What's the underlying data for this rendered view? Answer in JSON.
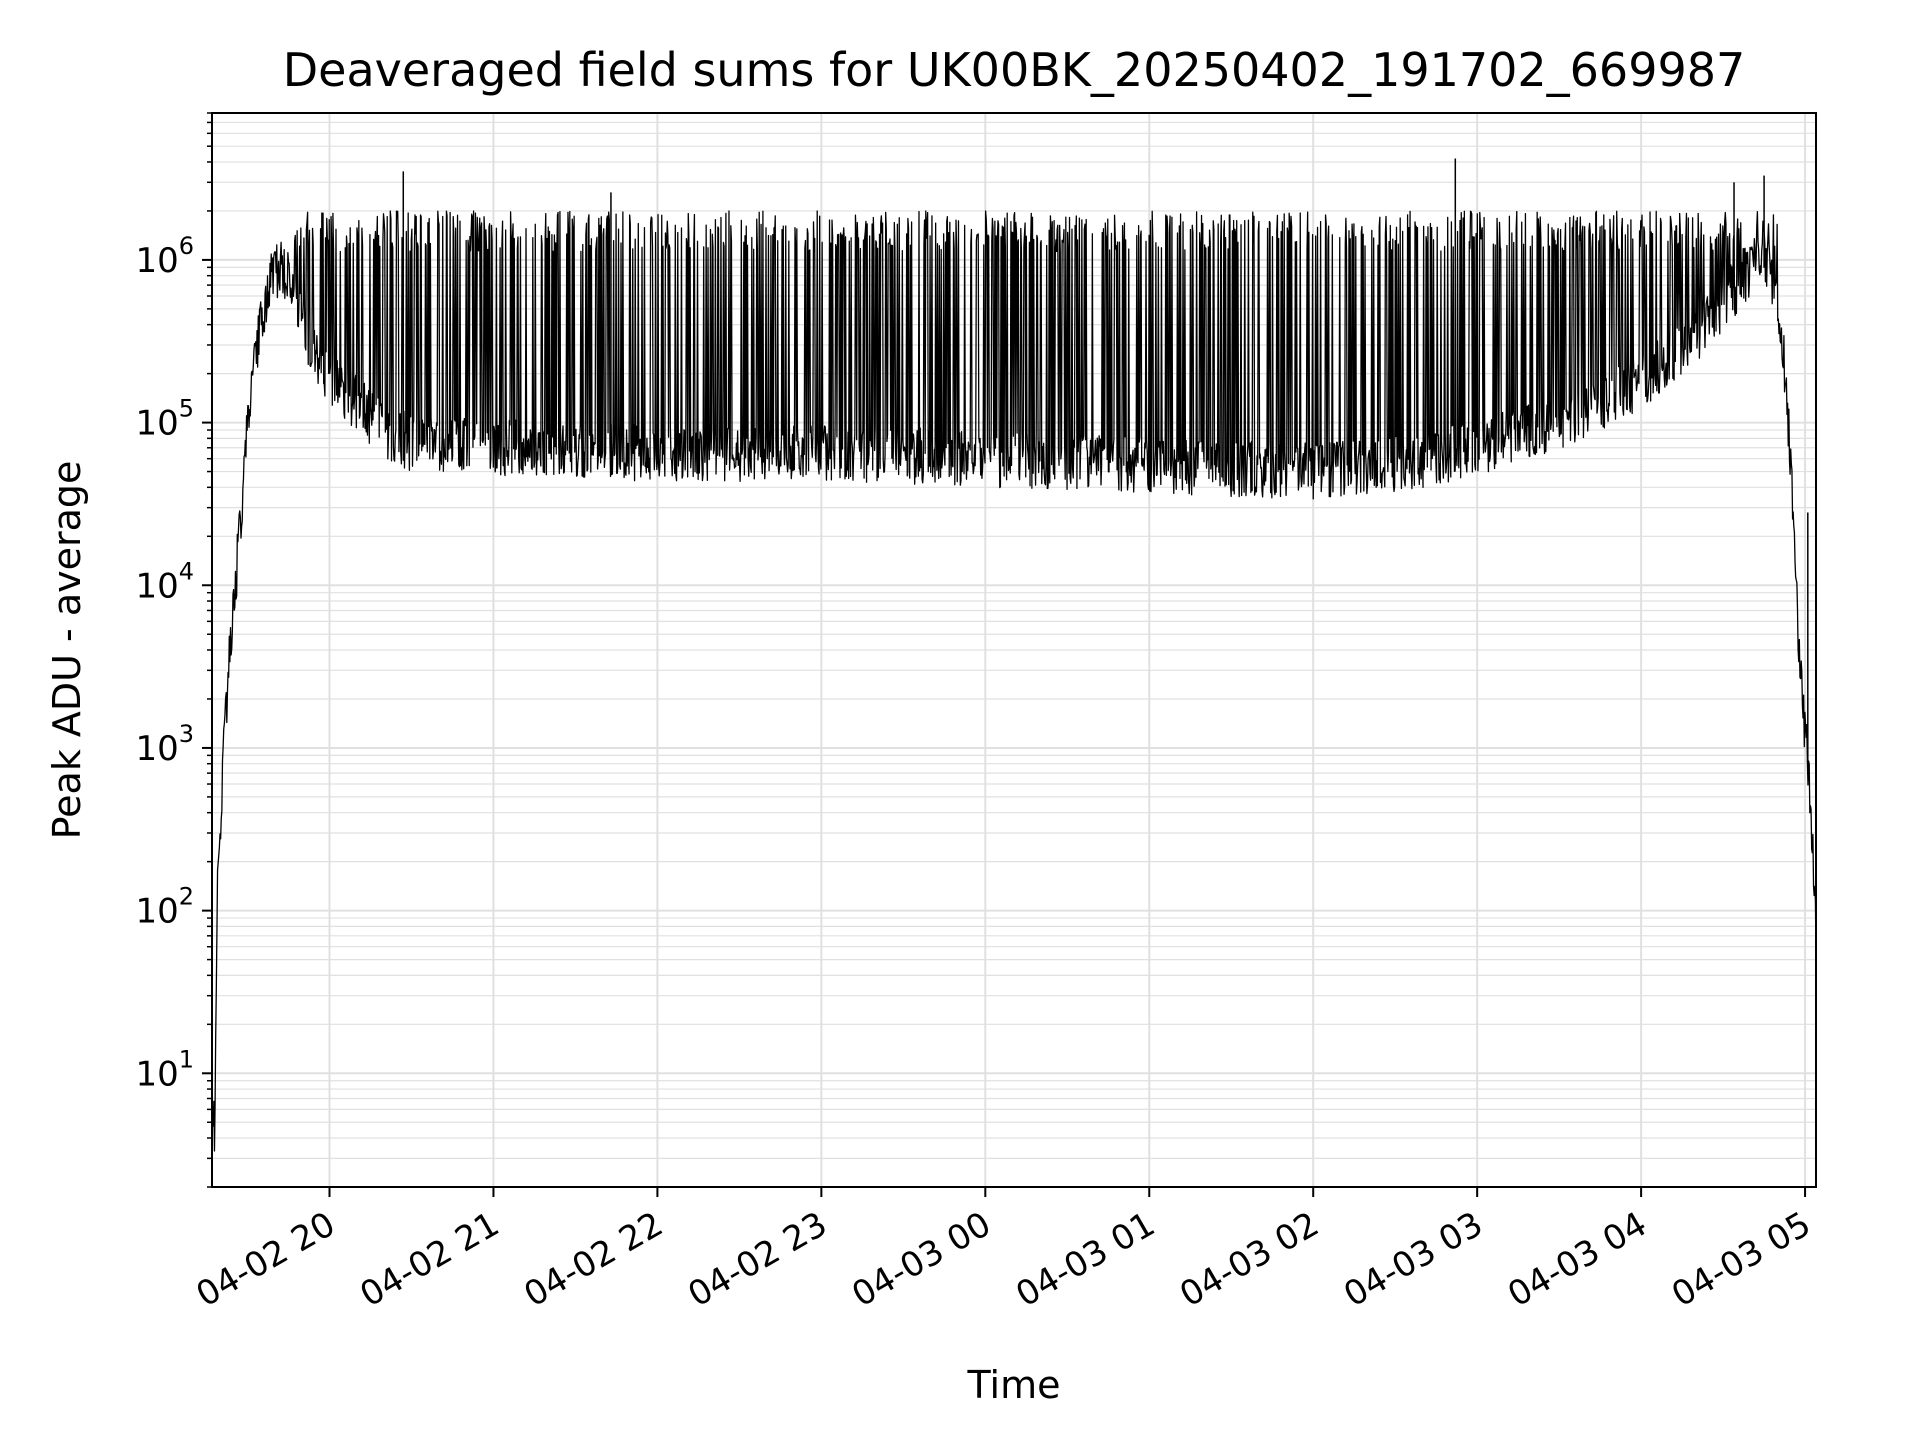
{
  "chart_data": {
    "type": "line",
    "title": "Deaveraged field sums for UK00BK_20250402_191702_669987",
    "xlabel": "Time",
    "ylabel": "Peak ADU - average",
    "yscale": "log",
    "grid": true,
    "legend": "none",
    "line_color": "#000000",
    "grid_color": "#e0e0e0",
    "xlim": [
      "2025-04-02 19:17",
      "2025-04-03 05:04"
    ],
    "ylim": [
      2,
      8000000
    ],
    "x_ticks": [
      {
        "at": "2025-04-02 20:00",
        "label": "04-02 20"
      },
      {
        "at": "2025-04-02 21:00",
        "label": "04-02 21"
      },
      {
        "at": "2025-04-02 22:00",
        "label": "04-02 22"
      },
      {
        "at": "2025-04-02 23:00",
        "label": "04-02 23"
      },
      {
        "at": "2025-04-03 00:00",
        "label": "04-03 00"
      },
      {
        "at": "2025-04-03 01:00",
        "label": "04-03 01"
      },
      {
        "at": "2025-04-03 02:00",
        "label": "04-03 02"
      },
      {
        "at": "2025-04-03 03:00",
        "label": "04-03 03"
      },
      {
        "at": "2025-04-03 04:00",
        "label": "04-03 04"
      },
      {
        "at": "2025-04-03 05:00",
        "label": "04-03 05"
      }
    ],
    "y_ticks": [
      {
        "value": 10,
        "base": "10",
        "exp": "1"
      },
      {
        "value": 100,
        "base": "10",
        "exp": "2"
      },
      {
        "value": 1000,
        "base": "10",
        "exp": "3"
      },
      {
        "value": 10000,
        "base": "10",
        "exp": "4"
      },
      {
        "value": 100000,
        "base": "10",
        "exp": "5"
      },
      {
        "value": 1000000,
        "base": "10",
        "exp": "6"
      }
    ],
    "series": [
      {
        "points": [
          [
            "2025-04-02 19:17",
            4
          ],
          [
            "2025-04-02 19:18",
            5
          ],
          [
            "2025-04-02 19:19",
            150
          ],
          [
            "2025-04-02 19:21",
            800
          ],
          [
            "2025-04-02 19:23",
            3000
          ],
          [
            "2025-04-02 19:25",
            8000
          ],
          [
            "2025-04-02 19:27",
            20000
          ],
          [
            "2025-04-02 19:29",
            60000
          ],
          [
            "2025-04-02 19:31",
            150000
          ],
          [
            "2025-04-02 19:34",
            350000
          ],
          [
            "2025-04-02 19:38",
            700000
          ],
          [
            "2025-04-02 19:42",
            900000
          ],
          [
            "2025-04-02 19:46",
            800000
          ],
          [
            "2025-04-02 19:50",
            400000
          ],
          [
            "2025-04-02 19:55",
            250000
          ],
          [
            "2025-04-02 20:00",
            180000
          ],
          [
            "2025-04-02 20:10",
            130000
          ],
          [
            "2025-04-02 20:20",
            90000
          ],
          [
            "2025-04-02 20:30",
            75000
          ],
          [
            "2025-04-02 21:00",
            70000
          ],
          [
            "2025-04-02 22:00",
            65000
          ],
          [
            "2025-04-02 23:00",
            65000
          ],
          [
            "2025-04-03 00:00",
            60000
          ],
          [
            "2025-04-03 01:00",
            55000
          ],
          [
            "2025-04-03 02:00",
            50000
          ],
          [
            "2025-04-03 02:30",
            55000
          ],
          [
            "2025-04-03 03:00",
            70000
          ],
          [
            "2025-04-03 03:30",
            100000
          ],
          [
            "2025-04-03 04:00",
            180000
          ],
          [
            "2025-04-03 04:20",
            350000
          ],
          [
            "2025-04-03 04:35",
            700000
          ],
          [
            "2025-04-03 04:42",
            1000000
          ],
          [
            "2025-04-03 04:48",
            800000
          ],
          [
            "2025-04-03 04:52",
            300000
          ],
          [
            "2025-04-03 04:55",
            50000
          ],
          [
            "2025-04-03 04:57",
            8000
          ],
          [
            "2025-04-03 04:59",
            2000
          ],
          [
            "2025-04-03 05:01",
            800
          ],
          [
            "2025-04-03 05:03",
            200
          ],
          [
            "2025-04-03 05:04",
            80
          ]
        ],
        "spike_peak_typical": 1500000,
        "spikes": [
          [
            "2025-04-02 20:27",
            3500000
          ],
          [
            "2025-04-02 21:43",
            2600000
          ],
          [
            "2025-04-03 02:52",
            4200000
          ],
          [
            "2025-04-03 04:34",
            3000000
          ],
          [
            "2025-04-03 04:45",
            3300000
          ],
          [
            "2025-04-03 05:01",
            28000
          ]
        ]
      }
    ]
  }
}
